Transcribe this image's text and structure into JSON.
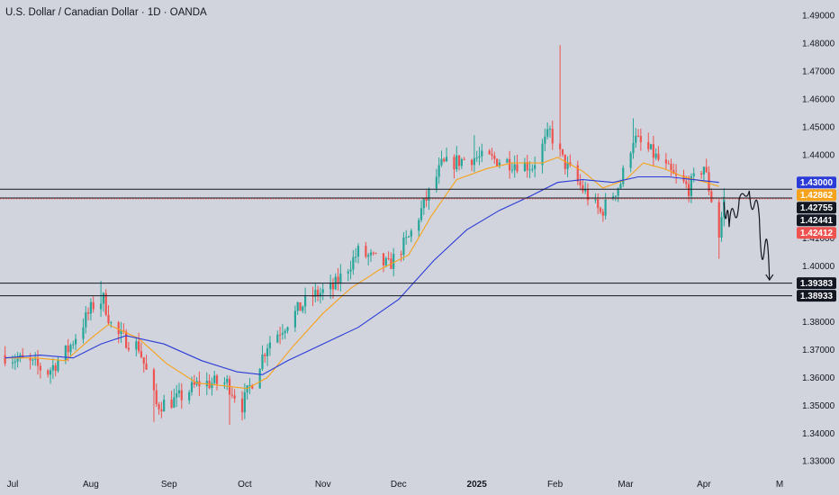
{
  "title": "U.S. Dollar / Canadian Dollar · 1D · OANDA",
  "colors": {
    "background": "#d1d4dc",
    "up": "#26a69a",
    "down": "#ef5350",
    "ma_fast": "#f7a21b",
    "ma_slow": "#2a3bd8",
    "level_line": "#131722",
    "price_line": "#ef5350"
  },
  "chart_data": {
    "type": "candlestick",
    "symbol": "U.S. Dollar / Canadian Dollar",
    "timeframe": "1D",
    "source": "OANDA",
    "x_labels": [
      "Jul",
      "Aug",
      "Sep",
      "Oct",
      "Nov",
      "Dec",
      "2025",
      "Feb",
      "Mar",
      "Apr",
      "M"
    ],
    "x_label_dates": [
      "2024-07-01",
      "2024-08-01",
      "2024-09-01",
      "2024-10-01",
      "2024-11-01",
      "2024-12-01",
      "2025-01-01",
      "2025-02-01",
      "2025-03-01",
      "2025-04-01",
      "2025-05-01"
    ],
    "x_label_bold": [
      false,
      false,
      false,
      false,
      false,
      false,
      true,
      false,
      false,
      false,
      false
    ],
    "xlim": [
      "2024-06-26",
      "2025-05-06"
    ],
    "y_ticks": [
      1.33,
      1.34,
      1.35,
      1.36,
      1.37,
      1.38,
      1.39,
      1.4,
      1.41,
      1.42,
      1.43,
      1.44,
      1.45,
      1.46,
      1.47,
      1.48,
      1.49
    ],
    "y_tick_labels": [
      "1.33000",
      "1.34000",
      "1.35000",
      "1.36000",
      "1.37000",
      "1.38000",
      "1.39000",
      "1.40000",
      "1.41000",
      "1.42000",
      "1.43000",
      "1.44000",
      "1.45000",
      "1.46000",
      "1.47000",
      "1.48000",
      "1.49000"
    ],
    "ylim": [
      1.3262,
      1.4955
    ],
    "price_path": [
      [
        "2024-06-28",
        1.368
      ],
      [
        "2024-07-08",
        1.365
      ],
      [
        "2024-07-15",
        1.362
      ],
      [
        "2024-07-23",
        1.37
      ],
      [
        "2024-08-02",
        1.386
      ],
      [
        "2024-08-06",
        1.388
      ],
      [
        "2024-08-10",
        1.376
      ],
      [
        "2024-08-20",
        1.371
      ],
      [
        "2024-08-27",
        1.35
      ],
      [
        "2024-09-04",
        1.352
      ],
      [
        "2024-09-13",
        1.358
      ],
      [
        "2024-09-24",
        1.358
      ],
      [
        "2024-09-30",
        1.35
      ],
      [
        "2024-10-10",
        1.372
      ],
      [
        "2024-10-18",
        1.38
      ],
      [
        "2024-10-27",
        1.389
      ],
      [
        "2024-11-05",
        1.392
      ],
      [
        "2024-11-15",
        1.405
      ],
      [
        "2024-11-27",
        1.4
      ],
      [
        "2024-12-05",
        1.41
      ],
      [
        "2024-12-18",
        1.436
      ],
      [
        "2024-12-30",
        1.439
      ],
      [
        "2025-01-10",
        1.438
      ],
      [
        "2025-01-23",
        1.436
      ],
      [
        "2025-01-30",
        1.448
      ],
      [
        "2025-02-04",
        1.438
      ],
      [
        "2025-02-10",
        1.43
      ],
      [
        "2025-02-19",
        1.419
      ],
      [
        "2025-02-27",
        1.43
      ],
      [
        "2025-03-04",
        1.446
      ],
      [
        "2025-03-12",
        1.44
      ],
      [
        "2025-03-20",
        1.432
      ],
      [
        "2025-03-26",
        1.428
      ],
      [
        "2025-04-01",
        1.436
      ],
      [
        "2025-04-04",
        1.424
      ],
      [
        "2025-04-07",
        1.411
      ],
      [
        "2025-04-09",
        1.4241
      ]
    ],
    "wick_spikes": [
      [
        "2024-08-05",
        1.3947
      ],
      [
        "2025-02-03",
        1.4793
      ],
      [
        "2025-02-01",
        1.46
      ],
      [
        "2024-09-25",
        1.343
      ],
      [
        "2024-12-31",
        1.447
      ],
      [
        "2025-04-07",
        1.4026
      ],
      [
        "2025-03-04",
        1.453
      ],
      [
        "2024-08-26",
        1.344
      ]
    ],
    "moving_averages": [
      {
        "color": "#f7a21b",
        "points": [
          [
            "2024-06-28",
            1.367
          ],
          [
            "2024-07-10",
            1.367
          ],
          [
            "2024-07-22",
            1.366
          ],
          [
            "2024-08-01",
            1.374
          ],
          [
            "2024-08-08",
            1.379
          ],
          [
            "2024-08-20",
            1.374
          ],
          [
            "2024-08-31",
            1.365
          ],
          [
            "2024-09-12",
            1.358
          ],
          [
            "2024-09-23",
            1.357
          ],
          [
            "2024-10-02",
            1.356
          ],
          [
            "2024-10-10",
            1.36
          ],
          [
            "2024-10-20",
            1.371
          ],
          [
            "2024-11-01",
            1.383
          ],
          [
            "2024-11-12",
            1.392
          ],
          [
            "2024-11-24",
            1.399
          ],
          [
            "2024-12-05",
            1.404
          ],
          [
            "2024-12-14",
            1.418
          ],
          [
            "2024-12-24",
            1.431
          ],
          [
            "2025-01-05",
            1.435
          ],
          [
            "2025-01-15",
            1.437
          ],
          [
            "2025-01-27",
            1.437
          ],
          [
            "2025-02-02",
            1.439
          ],
          [
            "2025-02-12",
            1.434
          ],
          [
            "2025-02-20",
            1.428
          ],
          [
            "2025-03-01",
            1.431
          ],
          [
            "2025-03-08",
            1.437
          ],
          [
            "2025-03-16",
            1.435
          ],
          [
            "2025-03-24",
            1.432
          ],
          [
            "2025-04-02",
            1.43
          ],
          [
            "2025-04-07",
            1.4286
          ]
        ]
      },
      {
        "color": "#2a3bd8",
        "points": [
          [
            "2024-06-28",
            1.367
          ],
          [
            "2024-07-12",
            1.368
          ],
          [
            "2024-07-25",
            1.367
          ],
          [
            "2024-08-05",
            1.372
          ],
          [
            "2024-08-15",
            1.375
          ],
          [
            "2024-08-30",
            1.372
          ],
          [
            "2024-09-14",
            1.366
          ],
          [
            "2024-09-28",
            1.362
          ],
          [
            "2024-10-08",
            1.361
          ],
          [
            "2024-10-18",
            1.366
          ],
          [
            "2024-11-01",
            1.372
          ],
          [
            "2024-11-15",
            1.378
          ],
          [
            "2024-12-01",
            1.388
          ],
          [
            "2024-12-15",
            1.402
          ],
          [
            "2024-12-28",
            1.413
          ],
          [
            "2025-01-10",
            1.42
          ],
          [
            "2025-01-22",
            1.425
          ],
          [
            "2025-02-02",
            1.43
          ],
          [
            "2025-02-12",
            1.431
          ],
          [
            "2025-02-24",
            1.43
          ],
          [
            "2025-03-06",
            1.432
          ],
          [
            "2025-03-18",
            1.432
          ],
          [
            "2025-03-28",
            1.431
          ],
          [
            "2025-04-07",
            1.43
          ]
        ]
      }
    ],
    "horizontal_levels": [
      {
        "value": 1.42755,
        "label": "1.42755",
        "color": "#131722",
        "style": "solid"
      },
      {
        "value": 1.42441,
        "label": "1.42441",
        "color": "#131722",
        "style": "solid"
      },
      {
        "value": 1.39383,
        "label": "1.39383",
        "color": "#131722",
        "style": "solid"
      },
      {
        "value": 1.38933,
        "label": "1.38933",
        "color": "#131722",
        "style": "solid"
      },
      {
        "value": 1.42412,
        "label": "1.42412",
        "color": "#ef5350",
        "style": "dotted"
      }
    ],
    "price_tags": [
      {
        "value": 1.43,
        "label": "1.43000",
        "bg": "#2a3bd8"
      },
      {
        "value": 1.4286,
        "label": "1.42862",
        "bg": "#f7a21b"
      },
      {
        "value": 1.42755,
        "label": "1.42755",
        "bg": "#131722"
      },
      {
        "value": 1.42441,
        "label": "1.42441",
        "bg": "#131722"
      },
      {
        "value": 1.42412,
        "label": "1.42412",
        "bg": "#ef5350"
      },
      {
        "value": 1.39383,
        "label": "1.39383",
        "bg": "#131722"
      },
      {
        "value": 1.38933,
        "label": "1.38933",
        "bg": "#131722"
      }
    ],
    "projection_path": [
      [
        "2025-04-09",
        1.423
      ],
      [
        "2025-04-11",
        1.414
      ],
      [
        "2025-04-15",
        1.424
      ],
      [
        "2025-04-19",
        1.427
      ],
      [
        "2025-04-23",
        1.417
      ],
      [
        "2025-04-27",
        1.395
      ]
    ],
    "grid": false
  }
}
